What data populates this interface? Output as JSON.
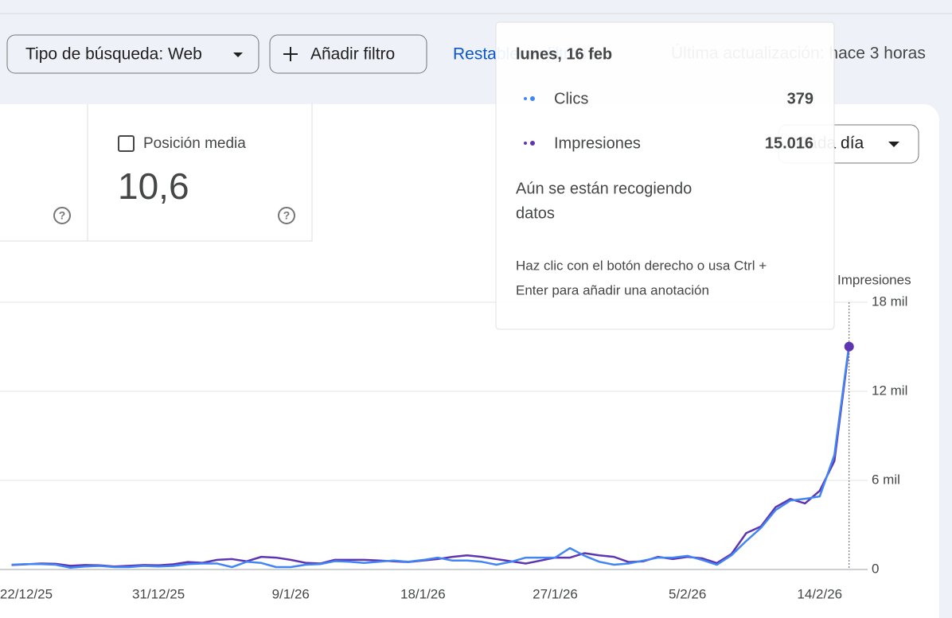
{
  "toolbar": {
    "search_type": "Tipo de búsqueda: Web",
    "add_filter": "Añadir filtro",
    "reset": "Restablecer filtros",
    "last_update": "Última actualización: hace 3 horas"
  },
  "metric": {
    "label": "Posición media",
    "value": "10,6"
  },
  "granularity": "Cada día",
  "tooltip": {
    "date": "lunes, 16 feb",
    "rows": [
      {
        "label": "Clics",
        "value": "379"
      },
      {
        "label": "Impresiones",
        "value": "15.016"
      }
    ],
    "note": [
      "Aún se están recogiendo",
      "datos"
    ],
    "hint": [
      "Haz clic con el botón derecho o usa Ctrl +",
      "Enter para añadir una anotación"
    ]
  },
  "chart_data": {
    "type": "line",
    "y_axis_label": "Impresiones",
    "categories": [
      null,
      "22/12/25",
      null,
      null,
      null,
      null,
      null,
      null,
      null,
      null,
      "31/12/25",
      null,
      null,
      null,
      null,
      null,
      null,
      null,
      null,
      "9/1/26",
      null,
      null,
      null,
      null,
      null,
      null,
      null,
      null,
      "18/1/26",
      null,
      null,
      null,
      null,
      null,
      null,
      null,
      null,
      "27/1/26",
      null,
      null,
      null,
      null,
      null,
      null,
      null,
      null,
      "5/2/26",
      null,
      null,
      null,
      null,
      null,
      null,
      null,
      null,
      "14/2/26",
      null,
      null
    ],
    "ylim": [
      0,
      18000
    ],
    "yticks": [
      0,
      {
        "value": 6000,
        "label": "6 mil"
      },
      {
        "value": 12000,
        "label": "12 mil"
      },
      {
        "value": 18000,
        "label": "18 mil"
      }
    ],
    "y2lim": [
      0,
      450
    ],
    "grid": true,
    "series": [
      {
        "name": "Clics",
        "color": "#4285f4",
        "axis": "y2",
        "values": [
          8,
          9,
          9,
          8,
          3,
          5,
          6,
          4,
          4,
          6,
          5,
          6,
          9,
          10,
          10,
          4,
          13,
          11,
          4,
          4,
          8,
          9,
          14,
          13,
          11,
          13,
          15,
          13,
          16,
          20,
          15,
          15,
          13,
          8,
          13,
          20,
          20,
          20,
          36,
          23,
          13,
          8,
          10,
          15,
          20,
          20,
          23,
          16,
          8,
          24,
          48,
          70,
          100,
          116,
          119,
          123,
          193,
          379
        ]
      },
      {
        "name": "Impresiones",
        "color": "#5e35b1",
        "values": [
          300,
          350,
          400,
          380,
          250,
          300,
          280,
          200,
          250,
          300,
          280,
          350,
          500,
          450,
          650,
          700,
          550,
          850,
          800,
          650,
          450,
          400,
          650,
          650,
          650,
          600,
          550,
          500,
          600,
          700,
          850,
          950,
          850,
          700,
          550,
          400,
          600,
          800,
          800,
          1100,
          950,
          850,
          500,
          550,
          850,
          700,
          850,
          750,
          430,
          1050,
          2450,
          2900,
          4200,
          4750,
          4450,
          5300,
          7300,
          15016
        ]
      }
    ]
  }
}
